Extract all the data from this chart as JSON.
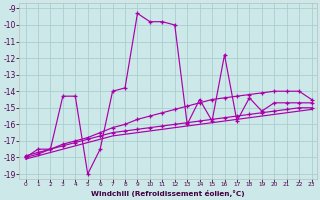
{
  "bg_color": "#cce8e8",
  "grid_color": "#aacece",
  "line_color": "#aa00aa",
  "xlabel": "Windchill (Refroidissement éolien,°C)",
  "xlim_min": -0.5,
  "xlim_max": 23.4,
  "ylim_min": -19.3,
  "ylim_max": -8.7,
  "xticks": [
    0,
    1,
    2,
    3,
    4,
    5,
    6,
    7,
    8,
    9,
    10,
    11,
    12,
    13,
    14,
    15,
    16,
    17,
    18,
    19,
    20,
    21,
    22,
    23
  ],
  "yticks": [
    -19,
    -18,
    -17,
    -16,
    -15,
    -14,
    -13,
    -12,
    -11,
    -10,
    -9
  ],
  "line1_x": [
    0,
    1,
    2,
    3,
    4,
    5,
    6,
    7,
    8,
    9,
    10,
    11,
    12,
    13,
    14,
    15,
    16,
    17,
    18,
    19,
    20,
    21,
    22,
    23
  ],
  "line1_y": [
    -18.0,
    -17.5,
    -17.5,
    -14.3,
    -14.3,
    -19.0,
    -17.5,
    -14.0,
    -13.8,
    -9.3,
    -9.8,
    -9.8,
    -10.0,
    -16.0,
    -14.5,
    -15.8,
    -11.8,
    -15.8,
    -14.4,
    -15.2,
    -14.7,
    -14.7,
    -14.7,
    -14.7
  ],
  "line2_x": [
    0,
    1,
    2,
    3,
    4,
    5,
    6,
    7,
    8,
    9,
    10,
    11,
    12,
    13,
    14,
    15,
    16,
    17,
    18,
    19,
    20,
    21,
    22,
    23
  ],
  "line2_y": [
    -18.0,
    -17.8,
    -17.5,
    -17.2,
    -17.0,
    -16.8,
    -16.5,
    -16.2,
    -16.0,
    -15.7,
    -15.5,
    -15.3,
    -15.1,
    -14.9,
    -14.7,
    -14.5,
    -14.4,
    -14.3,
    -14.2,
    -14.1,
    -14.0,
    -14.0,
    -14.0,
    -14.5
  ],
  "line3_x": [
    0,
    1,
    2,
    3,
    4,
    5,
    6,
    7,
    8,
    9,
    10,
    11,
    12,
    13,
    14,
    15,
    16,
    17,
    18,
    19,
    20,
    21,
    22,
    23
  ],
  "line3_y": [
    -17.9,
    -17.7,
    -17.5,
    -17.3,
    -17.1,
    -16.9,
    -16.7,
    -16.5,
    -16.4,
    -16.3,
    -16.2,
    -16.1,
    -16.0,
    -15.9,
    -15.8,
    -15.7,
    -15.6,
    -15.5,
    -15.4,
    -15.3,
    -15.2,
    -15.1,
    -15.0,
    -15.0
  ],
  "line4_x": [
    0,
    1,
    2,
    3,
    4,
    5,
    6,
    7,
    8,
    9,
    10,
    11,
    12,
    13,
    14,
    15,
    16,
    17,
    18,
    19,
    20,
    21,
    22,
    23
  ],
  "line4_y": [
    -18.1,
    -17.9,
    -17.7,
    -17.5,
    -17.3,
    -17.1,
    -16.9,
    -16.7,
    -16.6,
    -16.5,
    -16.4,
    -16.3,
    -16.2,
    -16.1,
    -16.0,
    -15.9,
    -15.8,
    -15.7,
    -15.6,
    -15.5,
    -15.4,
    -15.3,
    -15.2,
    -15.1
  ]
}
